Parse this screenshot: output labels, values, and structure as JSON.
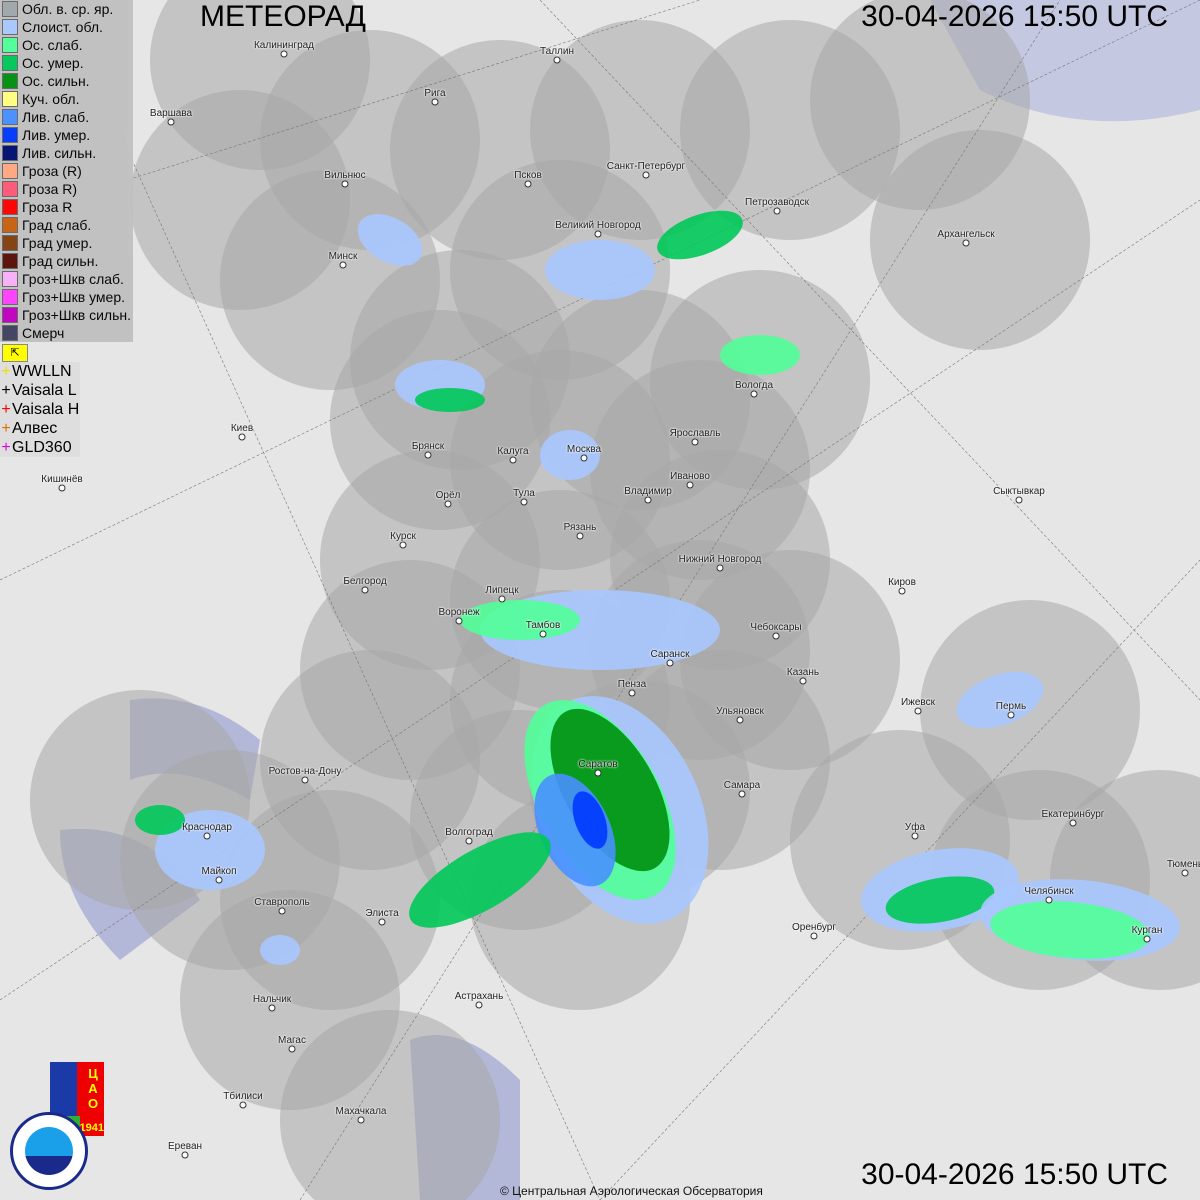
{
  "header": {
    "title": "МЕТЕОРАД",
    "datetime_top": "30-04-2026  15:50 UTC",
    "datetime_bottom": "30-04-2026  15:50 UTC"
  },
  "legend": [
    {
      "label": "Обл. в. ср. яр.",
      "color": "#a0a8ac"
    },
    {
      "label": "Слоист. обл.",
      "color": "#a8c8ff"
    },
    {
      "label": "Ос. слаб.",
      "color": "#50ff98"
    },
    {
      "label": "Ос. умер.",
      "color": "#00c858"
    },
    {
      "label": "Ос. сильн.",
      "color": "#009010"
    },
    {
      "label": "Куч. обл.",
      "color": "#ffff80"
    },
    {
      "label": "Лив. слаб.",
      "color": "#4890ff"
    },
    {
      "label": "Лив. умер.",
      "color": "#0038ff"
    },
    {
      "label": "Лив. сильн.",
      "color": "#001070"
    },
    {
      "label": "Гроза (R)",
      "color": "#ffa880"
    },
    {
      "label": "Гроза R)",
      "color": "#ff5878"
    },
    {
      "label": "Гроза R",
      "color": "#ff0000"
    },
    {
      "label": "Град слаб.",
      "color": "#c86010"
    },
    {
      "label": "Град умер.",
      "color": "#804010"
    },
    {
      "label": "Град сильн.",
      "color": "#581008"
    },
    {
      "label": "Гроз+Шкв слаб.",
      "color": "#f8b0f8"
    },
    {
      "label": "Гроз+Шкв умер.",
      "color": "#ff40ff"
    },
    {
      "label": "Гроз+Шкв сильн.",
      "color": "#c000c0"
    },
    {
      "label": "Смерч",
      "color": "#404060"
    }
  ],
  "lightning": [
    {
      "label": "WWLLN",
      "color": "#f0e000"
    },
    {
      "label": "Vaisala L",
      "color": "#000000"
    },
    {
      "label": "Vaisala H",
      "color": "#ff0000"
    },
    {
      "label": "Алвес",
      "color": "#e07000"
    },
    {
      "label": "GLD360",
      "color": "#e000e0"
    }
  ],
  "flag_icon": "flag-arrow-icon",
  "cities": [
    "Калининград",
    "Рига",
    "Таллин",
    "Варшава",
    "Вильнюс",
    "Псков",
    "Санкт-Петербург",
    "Петрозаводск",
    "Архангельск",
    "Минск",
    "Великий Новгород",
    "Вологда",
    "Киев",
    "Брянск",
    "Калуга",
    "Москва",
    "Ярославль",
    "Иваново",
    "Владимир",
    "Тула",
    "Кишинёв",
    "Орёл",
    "Сыктывкар",
    "Рязань",
    "Курск",
    "Нижний Новгород",
    "Киров",
    "Белгород",
    "Липецк",
    "Воронеж",
    "Тамбов",
    "Чебоксары",
    "Саранск",
    "Казань",
    "Пенза",
    "Ижевск",
    "Пермь",
    "Ульяновск",
    "Ростов-на-Дону",
    "Саратов",
    "Самара",
    "Уфа",
    "Екатеринбург",
    "Краснодар",
    "Волгоград",
    "Тюмень",
    "Майкоп",
    "Челябинск",
    "Ставрополь",
    "Элиста",
    "Курган",
    "Оренбург",
    "Астрахань",
    "Нальчик",
    "Магас",
    "Тбилиси",
    "Махачкала",
    "Ереван"
  ],
  "logos": {
    "cao": "ЦАО 1941",
    "roshydromet": "РОСГИДРОМЕТ ROSHYDROMET"
  },
  "copyright": "© Центральная Аэрологическая Обсерватория"
}
